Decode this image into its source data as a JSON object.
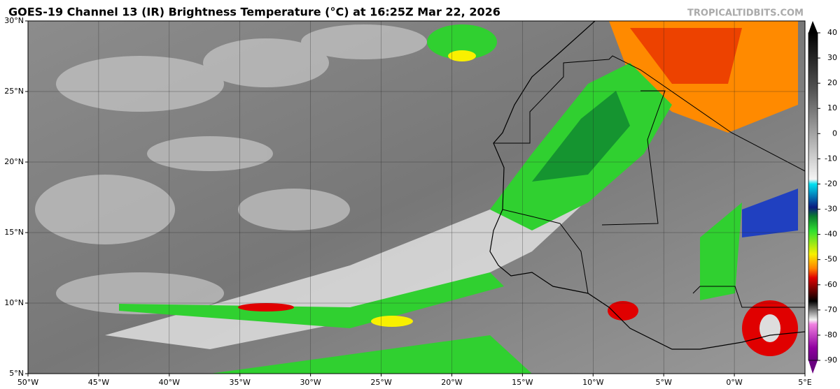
{
  "header": {
    "title": "GOES-19 Channel 13 (IR) Brightness Temperature (°C) at 16:25Z Mar 22, 2026",
    "watermark": "TROPICALTIDBITS.COM"
  },
  "map": {
    "lon_labels": [
      "50°W",
      "45°W",
      "40°W",
      "35°W",
      "30°W",
      "25°W",
      "20°W",
      "15°W",
      "10°W",
      "5°W",
      "0°W",
      "5°E"
    ],
    "lat_labels": [
      "30°N",
      "25°N",
      "20°N",
      "15°N",
      "10°N",
      "5°N"
    ]
  },
  "colorbar": {
    "ticks": [
      40,
      30,
      20,
      10,
      0,
      -10,
      -20,
      -30,
      -40,
      -50,
      -60,
      -70,
      -80,
      -90
    ]
  }
}
